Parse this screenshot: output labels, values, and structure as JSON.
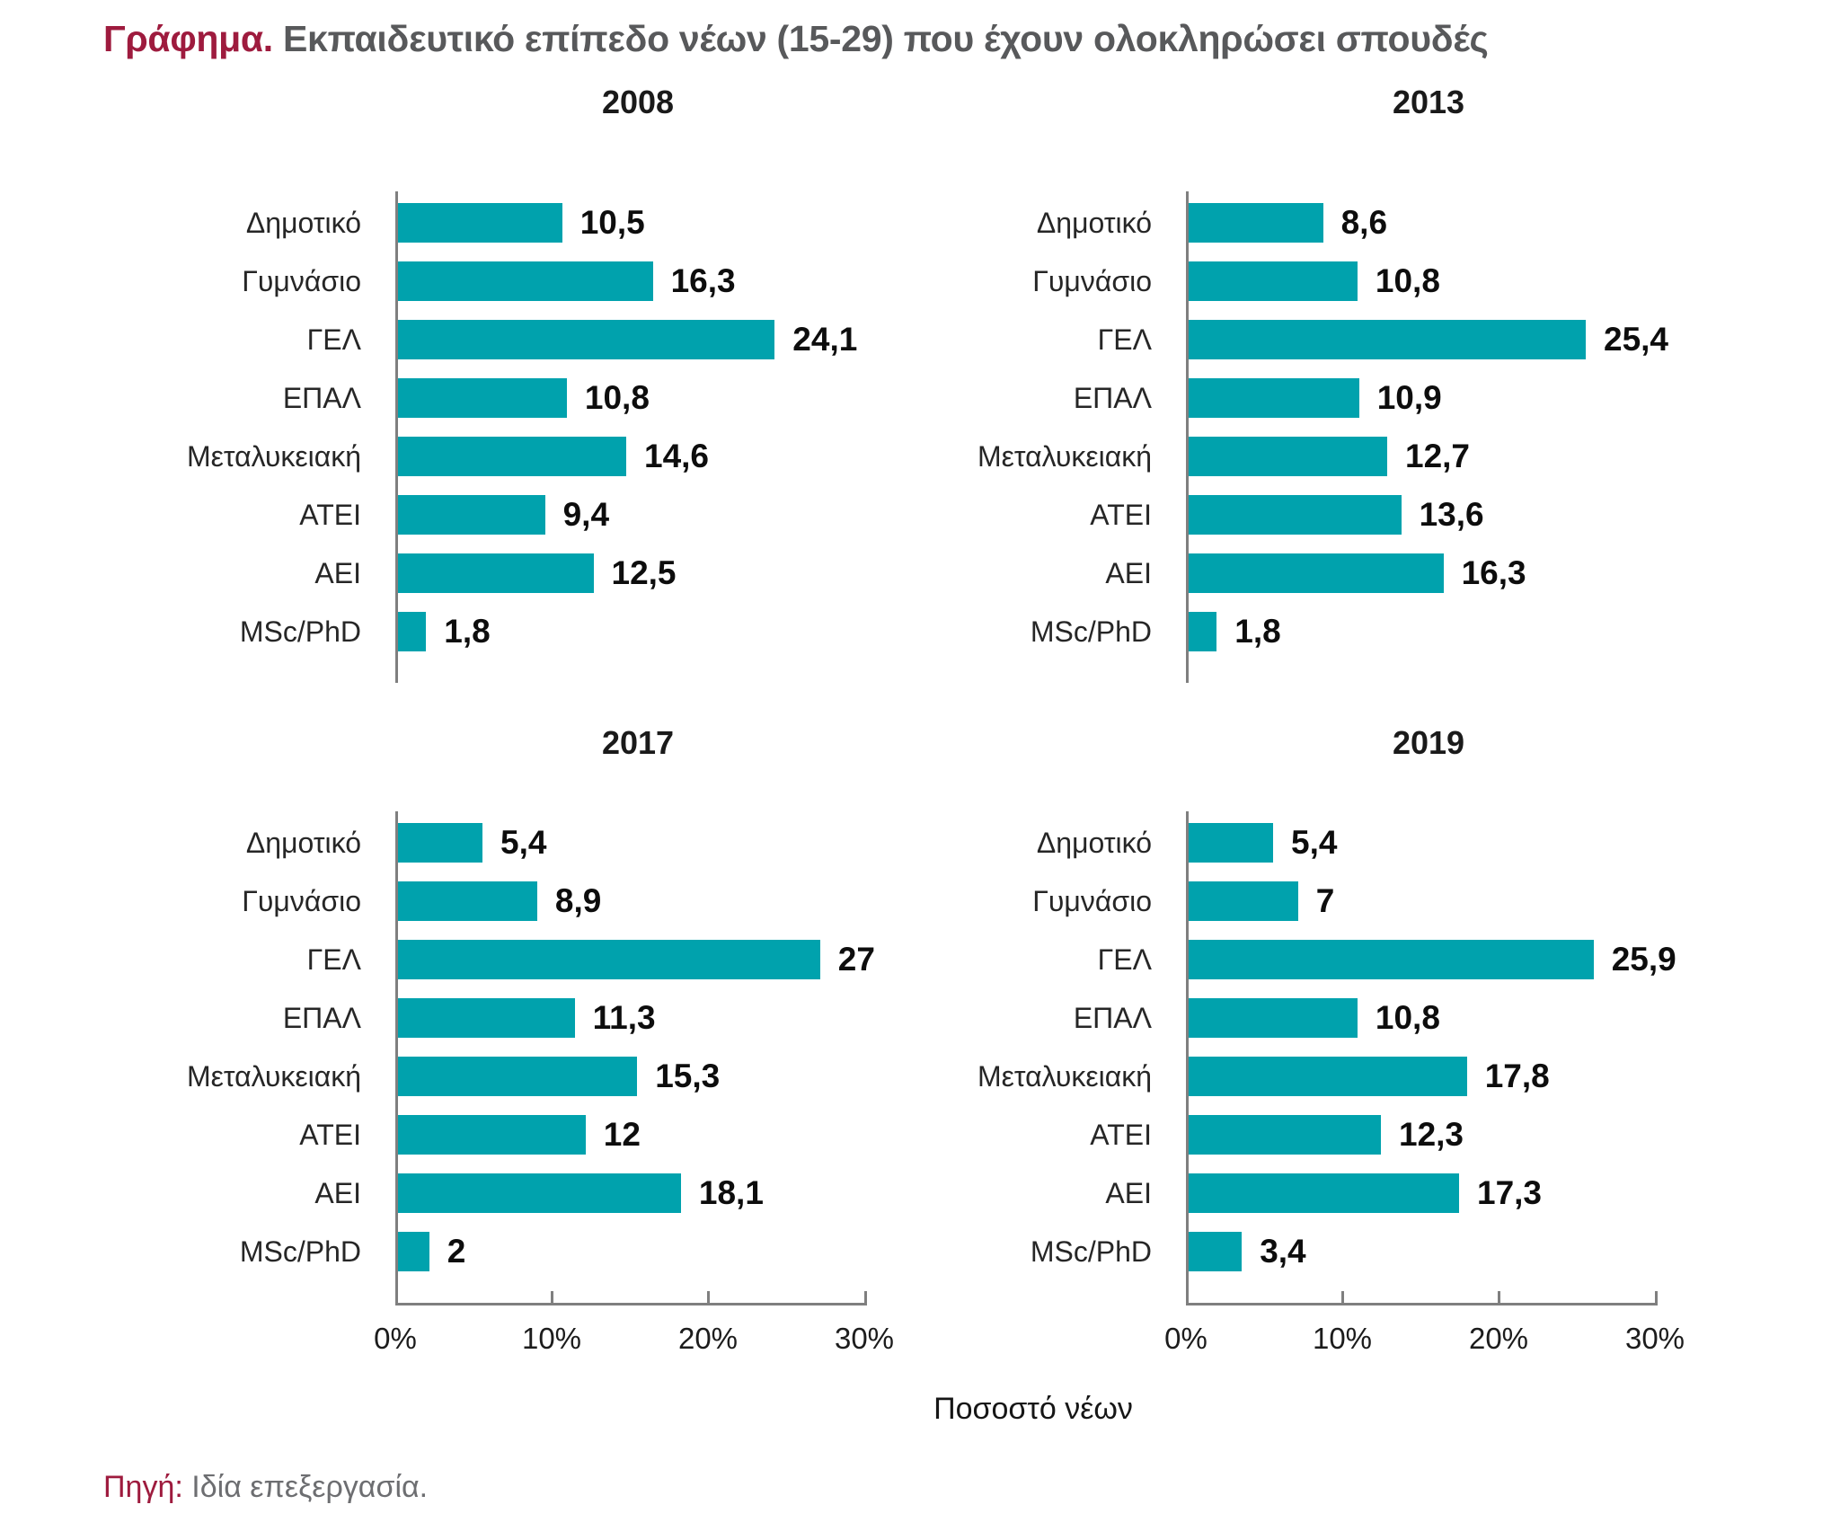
{
  "title": {
    "prefix": "Γράφημα.",
    "text": "Εκπαιδευτικό επίπεδο νέων (15-29) που έχουν ολοκληρώσει σπουδές"
  },
  "source": {
    "prefix": "Πηγή:",
    "text": "Ιδία επεξεργασία."
  },
  "colors": {
    "bar": "#00a2ad",
    "accent": "#9e1b3e",
    "title_gray": "#58595b",
    "axis_gray": "#7f7f7f"
  },
  "chart_data": {
    "type": "bar",
    "orientation": "horizontal",
    "categories": [
      "Δημοτικό",
      "Γυμνάσιο",
      "ΓΕΛ",
      "ΕΠΑΛ",
      "Μεταλυκειακή",
      "ΑΤΕΙ",
      "ΑΕΙ",
      "MSc/PhD"
    ],
    "xlabel": "Ποσοστό νέων",
    "xlim": [
      0,
      30
    ],
    "tick_labels": [
      "0%",
      "10%",
      "20%",
      "30%"
    ],
    "grid": false,
    "panels": [
      {
        "title": "2008",
        "values": [
          10.5,
          16.3,
          24.1,
          10.8,
          14.6,
          9.4,
          12.5,
          1.8
        ],
        "labels": [
          "10,5",
          "16,3",
          "24,1",
          "10,8",
          "14,6",
          "9,4",
          "12,5",
          "1,8"
        ],
        "show_xaxis": false
      },
      {
        "title": "2013",
        "values": [
          8.6,
          10.8,
          25.4,
          10.9,
          12.7,
          13.6,
          16.3,
          1.8
        ],
        "labels": [
          "8,6",
          "10,8",
          "25,4",
          "10,9",
          "12,7",
          "13,6",
          "16,3",
          "1,8"
        ],
        "show_xaxis": false
      },
      {
        "title": "2017",
        "values": [
          5.4,
          8.9,
          27,
          11.3,
          15.3,
          12,
          18.1,
          2
        ],
        "labels": [
          "5,4",
          "8,9",
          "27",
          "11,3",
          "15,3",
          "12",
          "18,1",
          "2"
        ],
        "show_xaxis": true
      },
      {
        "title": "2019",
        "values": [
          5.4,
          7,
          25.9,
          10.8,
          17.8,
          12.3,
          17.3,
          3.4
        ],
        "labels": [
          "5,4",
          "7",
          "25,9",
          "10,8",
          "17,8",
          "12,3",
          "17,3",
          "3,4"
        ],
        "show_xaxis": true
      }
    ]
  }
}
